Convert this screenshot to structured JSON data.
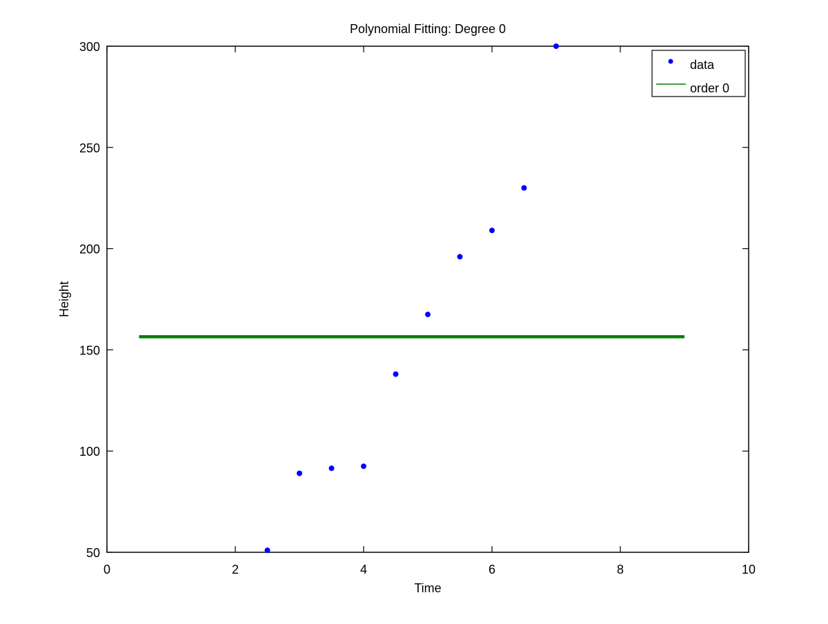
{
  "chart_data": {
    "type": "scatter",
    "title": "Polynomial Fitting: Degree 0",
    "xlabel": "Time",
    "ylabel": "Height",
    "xlim": [
      0,
      10
    ],
    "ylim": [
      50,
      300
    ],
    "x_ticks": [
      0,
      2,
      4,
      6,
      8,
      10
    ],
    "y_ticks": [
      50,
      100,
      150,
      200,
      250,
      300
    ],
    "x_tick_labels": [
      "0",
      "2",
      "4",
      "6",
      "8",
      "10"
    ],
    "y_tick_labels": [
      "50",
      "100",
      "150",
      "200",
      "250",
      "300"
    ],
    "grid": false,
    "legend_position": "top-right",
    "series": [
      {
        "name": "data",
        "kind": "points",
        "color": "#0000ff",
        "points": [
          {
            "x": 2.5,
            "y": 51
          },
          {
            "x": 3.0,
            "y": 89
          },
          {
            "x": 3.5,
            "y": 91.5
          },
          {
            "x": 4.0,
            "y": 92.5
          },
          {
            "x": 4.5,
            "y": 138
          },
          {
            "x": 5.0,
            "y": 167.5
          },
          {
            "x": 5.5,
            "y": 196
          },
          {
            "x": 6.0,
            "y": 209
          },
          {
            "x": 6.5,
            "y": 230
          },
          {
            "x": 7.0,
            "y": 300
          }
        ]
      },
      {
        "name": "order 0",
        "kind": "line",
        "color": "#008000",
        "points": [
          {
            "x": 0.5,
            "y": 156.5
          },
          {
            "x": 9.0,
            "y": 156.5
          }
        ]
      }
    ]
  }
}
